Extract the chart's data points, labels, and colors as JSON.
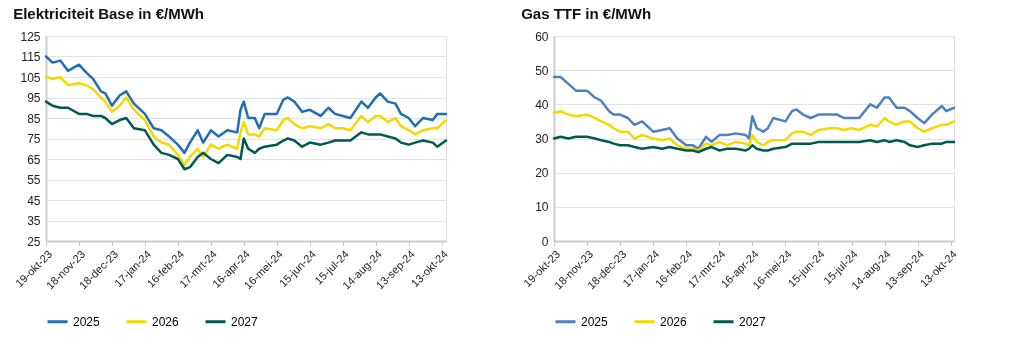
{
  "chart_data": [
    {
      "type": "line",
      "title": "Elektriciteit Base in €/MWh",
      "x": [
        "2023-10-19",
        "2023-10-25",
        "2023-11-01",
        "2023-11-08",
        "2023-11-18",
        "2023-11-25",
        "2023-12-01",
        "2023-12-08",
        "2023-12-12",
        "2023-12-18",
        "2023-12-25",
        "2023-12-31",
        "2024-01-07",
        "2024-01-17",
        "2024-01-25",
        "2024-02-01",
        "2024-02-08",
        "2024-02-16",
        "2024-02-22",
        "2024-02-27",
        "2024-03-05",
        "2024-03-10",
        "2024-03-17",
        "2024-03-24",
        "2024-04-01",
        "2024-04-10",
        "2024-04-13",
        "2024-04-16",
        "2024-04-20",
        "2024-04-26",
        "2024-04-30",
        "2024-05-05",
        "2024-05-16",
        "2024-05-22",
        "2024-05-26",
        "2024-06-01",
        "2024-06-08",
        "2024-06-15",
        "2024-06-25",
        "2024-07-02",
        "2024-07-08",
        "2024-07-15",
        "2024-07-22",
        "2024-08-01",
        "2024-08-07",
        "2024-08-14",
        "2024-08-18",
        "2024-08-25",
        "2024-09-01",
        "2024-09-06",
        "2024-09-13",
        "2024-09-19",
        "2024-09-26",
        "2024-10-05",
        "2024-10-09",
        "2024-10-17"
      ],
      "series": [
        {
          "name": "2025",
          "color": "#1f6db3",
          "values": [
            115,
            112,
            113,
            108,
            111,
            107,
            104,
            98,
            97,
            91,
            96,
            98,
            92,
            87,
            80,
            79,
            76,
            72,
            68,
            73,
            79,
            73,
            79,
            76,
            79,
            78,
            89,
            93,
            85,
            85,
            80,
            87,
            87,
            94,
            95,
            93,
            88,
            89,
            86,
            90,
            87,
            86,
            85,
            93,
            90,
            95,
            97,
            93,
            92,
            87,
            85,
            81,
            85,
            84,
            87,
            87
          ]
        },
        {
          "name": "2026",
          "color": "#f5d800",
          "values": [
            105,
            104,
            105,
            101,
            102,
            101,
            99,
            95,
            93,
            88,
            91,
            95,
            89,
            84,
            76,
            73,
            72,
            67,
            62,
            66,
            70,
            66,
            72,
            70,
            72,
            70,
            78,
            83,
            77,
            77,
            76,
            80,
            79,
            84,
            85,
            82,
            80,
            81,
            80,
            82,
            80,
            80,
            79,
            86,
            83,
            86,
            86,
            83,
            85,
            81,
            79,
            77,
            79,
            80,
            80,
            84
          ]
        },
        {
          "name": "2027",
          "color": "#005a52",
          "values": [
            93,
            91,
            90,
            90,
            87,
            87,
            86,
            86,
            85,
            82,
            84,
            85,
            80,
            79,
            72,
            68,
            67,
            65,
            60,
            61,
            66,
            68,
            65,
            63,
            67,
            66,
            65,
            75,
            70,
            68,
            70,
            71,
            72,
            74,
            75,
            74,
            71,
            73,
            72,
            73,
            74,
            74,
            74,
            78,
            77,
            77,
            77,
            76,
            75,
            73,
            72,
            73,
            74,
            73,
            71,
            74
          ]
        }
      ],
      "xlim": [
        "2023-10-19",
        "2024-10-17"
      ],
      "xticks": [
        {
          "value": "2023-10-19",
          "label": "19-okt-23"
        },
        {
          "value": "2023-11-18",
          "label": "18-nov-23"
        },
        {
          "value": "2023-12-18",
          "label": "18-dec-23"
        },
        {
          "value": "2024-01-17",
          "label": "17-jan-24"
        },
        {
          "value": "2024-02-16",
          "label": "16-feb-24"
        },
        {
          "value": "2024-03-17",
          "label": "17-mrt-24"
        },
        {
          "value": "2024-04-16",
          "label": "16-apr-24"
        },
        {
          "value": "2024-05-16",
          "label": "16-mei-24"
        },
        {
          "value": "2024-06-15",
          "label": "15-jun-24"
        },
        {
          "value": "2024-07-15",
          "label": "15-jul-24"
        },
        {
          "value": "2024-08-14",
          "label": "14-aug-24"
        },
        {
          "value": "2024-09-13",
          "label": "13-sep-24"
        },
        {
          "value": "2024-10-13",
          "label": "13-okt-24"
        }
      ],
      "ylim": [
        25,
        125
      ],
      "yticks": [
        25,
        35,
        45,
        55,
        65,
        75,
        85,
        95,
        105,
        115,
        125
      ],
      "grid": "y",
      "legend": "bottom",
      "line_style": "solid"
    },
    {
      "type": "line",
      "title": "Gas TTF in €/MWh",
      "x": [
        "2023-10-19",
        "2023-10-25",
        "2023-11-01",
        "2023-11-08",
        "2023-11-18",
        "2023-11-25",
        "2023-12-01",
        "2023-12-08",
        "2023-12-12",
        "2023-12-18",
        "2023-12-25",
        "2023-12-31",
        "2024-01-07",
        "2024-01-17",
        "2024-01-25",
        "2024-02-01",
        "2024-02-08",
        "2024-02-16",
        "2024-02-22",
        "2024-02-27",
        "2024-03-05",
        "2024-03-10",
        "2024-03-17",
        "2024-03-24",
        "2024-04-01",
        "2024-04-10",
        "2024-04-13",
        "2024-04-16",
        "2024-04-20",
        "2024-04-26",
        "2024-04-30",
        "2024-05-05",
        "2024-05-16",
        "2024-05-22",
        "2024-05-26",
        "2024-06-01",
        "2024-06-08",
        "2024-06-15",
        "2024-06-25",
        "2024-07-02",
        "2024-07-08",
        "2024-07-15",
        "2024-07-22",
        "2024-08-01",
        "2024-08-07",
        "2024-08-14",
        "2024-08-18",
        "2024-08-25",
        "2024-09-01",
        "2024-09-06",
        "2024-09-13",
        "2024-09-19",
        "2024-09-26",
        "2024-10-05",
        "2024-10-09",
        "2024-10-16"
      ],
      "series": [
        {
          "name": "2025",
          "color": "#4f81c0",
          "values": [
            48,
            48,
            46,
            44,
            44,
            42,
            41,
            38,
            37,
            37,
            36,
            34,
            35,
            32,
            32.5,
            33,
            30,
            28,
            28,
            27,
            30.5,
            29,
            31,
            31,
            31.5,
            31,
            30,
            36.5,
            33,
            32,
            33,
            36,
            35,
            38,
            38.5,
            37,
            36,
            37,
            37,
            37,
            36,
            36,
            36,
            40,
            39,
            42,
            42,
            39,
            39,
            38,
            36,
            34.5,
            37,
            39.5,
            38,
            39
          ]
        },
        {
          "name": "2026",
          "color": "#f5d800",
          "values": [
            37.5,
            38,
            37,
            36.5,
            37,
            36,
            35,
            34,
            33,
            32,
            32,
            30,
            31,
            30,
            29.5,
            30,
            28,
            27,
            27,
            26.5,
            28.5,
            28,
            29,
            28,
            29,
            28.5,
            28,
            31,
            29,
            28,
            29,
            29.5,
            29.5,
            31.5,
            32,
            32,
            31,
            32.5,
            33,
            33,
            32.5,
            33,
            32.5,
            34,
            33.5,
            36,
            35,
            34,
            35,
            35,
            33,
            32,
            33,
            34,
            34,
            35
          ]
        },
        {
          "name": "2027",
          "color": "#005a52",
          "values": [
            30,
            30.5,
            30,
            30.5,
            30.5,
            30,
            29.5,
            29,
            28.5,
            28,
            28,
            27.5,
            27,
            27.5,
            27,
            27.5,
            27,
            26.5,
            26.5,
            26,
            27,
            27.5,
            26.5,
            27,
            27,
            26.5,
            27,
            28,
            27,
            26.5,
            26.5,
            27,
            27.5,
            28.5,
            28.5,
            28.5,
            28.5,
            29,
            29,
            29,
            29,
            29,
            29,
            29.5,
            29,
            29.5,
            29,
            29.5,
            29,
            28,
            27.5,
            28,
            28.5,
            28.5,
            29,
            29
          ]
        }
      ],
      "xlim": [
        "2023-10-19",
        "2024-10-16"
      ],
      "xticks": [
        {
          "value": "2023-10-19",
          "label": "19-okt-23"
        },
        {
          "value": "2023-11-18",
          "label": "18-nov-23"
        },
        {
          "value": "2023-12-18",
          "label": "18-dec-23"
        },
        {
          "value": "2024-01-17",
          "label": "17-jan-24"
        },
        {
          "value": "2024-02-16",
          "label": "16-feb-24"
        },
        {
          "value": "2024-03-17",
          "label": "17-mrt-24"
        },
        {
          "value": "2024-04-16",
          "label": "16-apr-24"
        },
        {
          "value": "2024-05-16",
          "label": "16-mei-24"
        },
        {
          "value": "2024-06-15",
          "label": "15-jun-24"
        },
        {
          "value": "2024-07-15",
          "label": "15-jul-24"
        },
        {
          "value": "2024-08-14",
          "label": "14-aug-24"
        },
        {
          "value": "2024-09-13",
          "label": "13-sep-24"
        },
        {
          "value": "2024-10-13",
          "label": "13-okt-24"
        }
      ],
      "ylim": [
        0,
        60
      ],
      "yticks": [
        0,
        10,
        20,
        30,
        40,
        50,
        60
      ],
      "grid": "y",
      "legend": "bottom",
      "line_style": "solid"
    }
  ]
}
